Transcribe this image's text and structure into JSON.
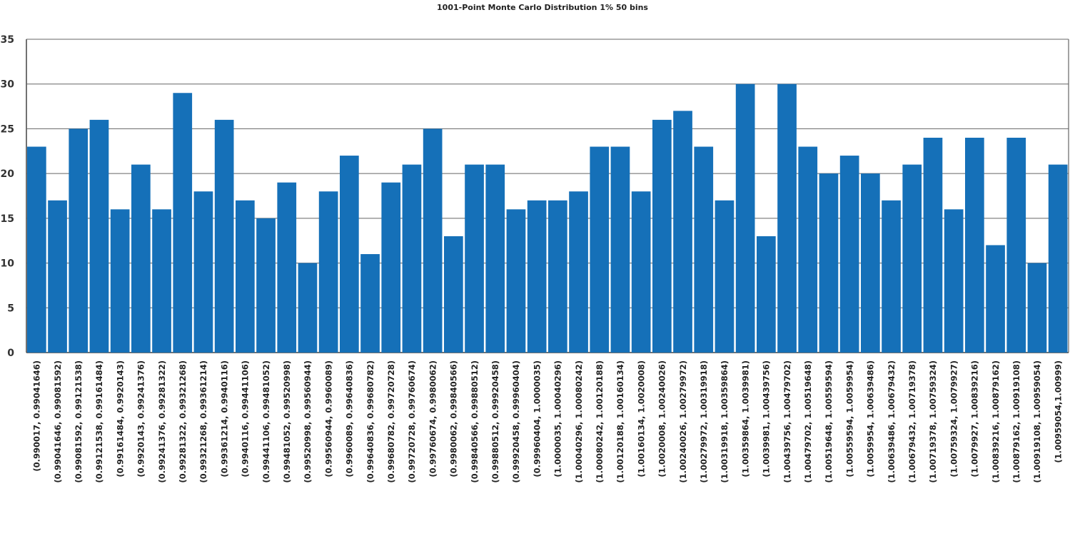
{
  "chart_data": {
    "type": "bar",
    "title": "1001-Point Monte Carlo Distribution 1% 50 bins",
    "xlabel": "",
    "ylabel": "",
    "ylim": [
      0,
      35
    ],
    "yticks": [
      0,
      5,
      10,
      15,
      20,
      25,
      30,
      35
    ],
    "grid": true,
    "bar_color": "#1570b8",
    "categories": [
      "(0.990017, 0.99041646)",
      "(0.99041646, 0.99081592)",
      "(0.99081592, 0.99121538)",
      "(0.99121538, 0.99161484)",
      "(0.99161484, 0.9920143)",
      "(0.9920143, 0.99241376)",
      "(0.99241376, 0.99281322)",
      "(0.99281322, 0.99321268)",
      "(0.99321268, 0.99361214)",
      "(0.99361214, 0.9940116)",
      "(0.9940116, 0.99441106)",
      "(0.99441106, 0.99481052)",
      "(0.99481052, 0.99520998)",
      "(0.99520998, 0.99560944)",
      "(0.99560944, 0.9960089)",
      "(0.9960089, 0.99640836)",
      "(0.99640836, 0.99680782)",
      "(0.99680782, 0.99720728)",
      "(0.99720728, 0.99760674)",
      "(0.99760674, 0.9980062)",
      "(0.9980062, 0.99840566)",
      "(0.99840566, 0.99880512)",
      "(0.99880512, 0.99920458)",
      "(0.99920458, 0.99960404)",
      "(0.99960404, 1.0000035)",
      "(1.0000035, 1.00040296)",
      "(1.00040296, 1.00080242)",
      "(1.00080242, 1.00120188)",
      "(1.00120188, 1.00160134)",
      "(1.00160134, 1.0020008)",
      "(1.0020008, 1.00240026)",
      "(1.00240026, 1.00279972)",
      "(1.00279972, 1.00319918)",
      "(1.00319918, 1.00359864)",
      "(1.00359864, 1.0039981)",
      "(1.0039981, 1.00439756)",
      "(1.00439756, 1.00479702)",
      "(1.00479702, 1.00519648)",
      "(1.00519648, 1.00559594)",
      "(1.00559594, 1.0059954)",
      "(1.0059954, 1.00639486)",
      "(1.00639486, 1.00679432)",
      "(1.00679432, 1.00719378)",
      "(1.00719378, 1.00759324)",
      "(1.00759324, 1.0079927)",
      "(1.0079927, 1.00839216)",
      "(1.00839216, 1.00879162)",
      "(1.00879162, 1.00919108)",
      "(1.00919108, 1.00959054)",
      "(1.00959054,1.00999)"
    ],
    "values": [
      23,
      17,
      25,
      26,
      16,
      21,
      16,
      29,
      18,
      26,
      17,
      15,
      19,
      10,
      18,
      22,
      11,
      19,
      21,
      25,
      13,
      21,
      21,
      16,
      17,
      17,
      18,
      23,
      23,
      18,
      26,
      27,
      23,
      17,
      30,
      13,
      30,
      23,
      20,
      22,
      20,
      17,
      21,
      24,
      16,
      24,
      12,
      24,
      10,
      21
    ]
  }
}
